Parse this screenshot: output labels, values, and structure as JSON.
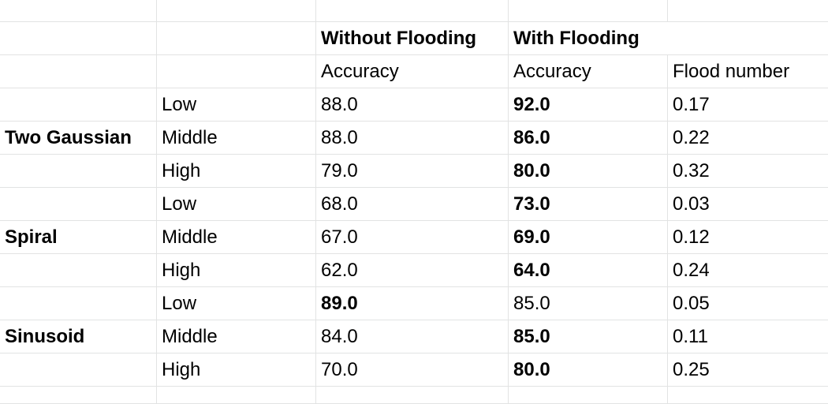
{
  "header": {
    "without_flooding": "Without Flooding",
    "with_flooding": "With Flooding"
  },
  "subheader": {
    "accuracy_without": "Accuracy",
    "accuracy_with": "Accuracy",
    "flood_number": "Flood number"
  },
  "groups": [
    {
      "dataset": "Two Gaussian",
      "rows": [
        {
          "level": "Low",
          "without": "88.0",
          "with": "92.0",
          "flood": "0.17"
        },
        {
          "level": "Middle",
          "without": "88.0",
          "with": "86.0",
          "flood": "0.22"
        },
        {
          "level": "High",
          "without": "79.0",
          "with": "80.0",
          "flood": "0.32"
        }
      ]
    },
    {
      "dataset": "Spiral",
      "rows": [
        {
          "level": "Low",
          "without": "68.0",
          "with": "73.0",
          "flood": "0.03"
        },
        {
          "level": "Middle",
          "without": "67.0",
          "with": "69.0",
          "flood": "0.12"
        },
        {
          "level": "High",
          "without": "62.0",
          "with": "64.0",
          "flood": "0.24"
        }
      ]
    },
    {
      "dataset": "Sinusoid",
      "rows": [
        {
          "level": "Low",
          "without": "89.0",
          "with": "85.0",
          "flood": "0.05"
        },
        {
          "level": "Middle",
          "without": "84.0",
          "with": "85.0",
          "flood": "0.11"
        },
        {
          "level": "High",
          "without": "70.0",
          "with": "80.0",
          "flood": "0.25"
        }
      ]
    }
  ]
}
